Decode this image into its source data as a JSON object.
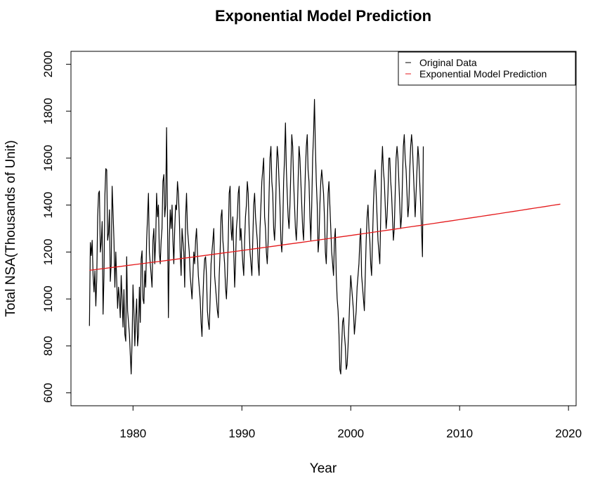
{
  "chart_data": {
    "type": "line",
    "title": "Exponential Model Prediction",
    "xlabel": "Year",
    "ylabel": "Total NSA(Thousands of Unit)",
    "xlim": [
      1974.3,
      2020.7
    ],
    "ylim": [
      545,
      2055
    ],
    "x_ticks": [
      1980,
      1990,
      2000,
      2010,
      2020
    ],
    "y_ticks": [
      600,
      800,
      1000,
      1200,
      1400,
      1600,
      1800,
      2000
    ],
    "grid": false,
    "legend_position": "top-right",
    "series": [
      {
        "name": "Original Data",
        "color": "#000000",
        "start": 1976.0,
        "step": 0.083333,
        "values": [
          885,
          1240,
          1185,
          1250,
          1100,
          1030,
          1120,
          970,
          1085,
          1350,
          1450,
          1460,
          1200,
          1240,
          1330,
          935,
          1100,
          1440,
          1555,
          1550,
          1250,
          1280,
          1380,
          1075,
          1150,
          1480,
          1370,
          1250,
          1050,
          1200,
          1080,
          960,
          1050,
          1000,
          920,
          1100,
          1000,
          880,
          1040,
          850,
          820,
          1180,
          950,
          900,
          850,
          760,
          680,
          820,
          1060,
          950,
          800,
          920,
          1000,
          800,
          850,
          1050,
          900,
          1170,
          1205,
          1000,
          980,
          1120,
          1050,
          1250,
          1350,
          1450,
          1200,
          1150,
          1100,
          1050,
          1250,
          1300,
          1150,
          1250,
          1450,
          1350,
          1400,
          1200,
          1150,
          1250,
          1300,
          1500,
          1530,
          1350,
          1400,
          1730,
          1350,
          920,
          1250,
          1380,
          1300,
          1400,
          1250,
          1150,
          1300,
          1400,
          1380,
          1500,
          1450,
          1350,
          1200,
          1100,
          1300,
          1250,
          1200,
          1050,
          1350,
          1450,
          1300,
          1250,
          1200,
          1100,
          1050,
          1000,
          1100,
          1200,
          1150,
          1250,
          1300,
          1200,
          1100,
          1050,
          1000,
          900,
          840,
          1000,
          1100,
          1170,
          1180,
          1100,
          950,
          900,
          870,
          1000,
          1150,
          1200,
          1250,
          1300,
          1100,
          1050,
          1000,
          950,
          920,
          1100,
          1200,
          1350,
          1380,
          1250,
          1200,
          1150,
          1050,
          1000,
          1100,
          1250,
          1450,
          1480,
          1300,
          1250,
          1350,
          1200,
          1050,
          1150,
          1300,
          1350,
          1450,
          1480,
          1250,
          1300,
          1220,
          1150,
          1100,
          1250,
          1350,
          1400,
          1500,
          1450,
          1300,
          1200,
          1150,
          1100,
          1250,
          1400,
          1450,
          1350,
          1300,
          1250,
          1150,
          1100,
          1300,
          1400,
          1500,
          1550,
          1600,
          1350,
          1300,
          1200,
          1150,
          1250,
          1450,
          1600,
          1650,
          1500,
          1450,
          1300,
          1250,
          1350,
          1550,
          1650,
          1600,
          1500,
          1400,
          1250,
          1200,
          1300,
          1500,
          1600,
          1750,
          1550,
          1450,
          1350,
          1300,
          1400,
          1550,
          1700,
          1650,
          1500,
          1400,
          1300,
          1250,
          1350,
          1500,
          1650,
          1600,
          1500,
          1400,
          1300,
          1250,
          1400,
          1550,
          1650,
          1700,
          1550,
          1500,
          1350,
          1250,
          1400,
          1600,
          1700,
          1850,
          1650,
          1500,
          1400,
          1200,
          1250,
          1400,
          1500,
          1550,
          1500,
          1450,
          1350,
          1200,
          1150,
          1300,
          1450,
          1500,
          1400,
          1300,
          1200,
          1150,
          1100,
          1250,
          1300,
          1100,
          1000,
          950,
          850,
          700,
          680,
          800,
          900,
          920,
          850,
          800,
          700,
          720,
          800,
          900,
          1000,
          1100,
          1050,
          1000,
          950,
          850,
          900,
          950,
          1050,
          1100,
          1150,
          1250,
          1300,
          1100,
          1050,
          1000,
          950,
          1100,
          1250,
          1350,
          1400,
          1300,
          1250,
          1150,
          1100,
          1250,
          1400,
          1500,
          1550,
          1450,
          1350,
          1250,
          1200,
          1150,
          1350,
          1550,
          1650,
          1550,
          1500,
          1400,
          1300,
          1350,
          1450,
          1600,
          1600,
          1500,
          1450,
          1350,
          1250,
          1300,
          1450,
          1600,
          1650,
          1600,
          1500,
          1400,
          1300,
          1350,
          1500,
          1650,
          1700,
          1600,
          1550,
          1450,
          1350,
          1400,
          1550,
          1650,
          1700,
          1650,
          1550,
          1450,
          1350,
          1450,
          1550,
          1650,
          1600,
          1500,
          1400,
          1300,
          1180,
          1650
        ]
      },
      {
        "name": "Exponential Model Prediction",
        "color": "#e41a1c",
        "model": "exponential",
        "start": 1976.0,
        "end": 2019.25,
        "y_start": 1122,
        "y_end": 1404
      }
    ]
  }
}
